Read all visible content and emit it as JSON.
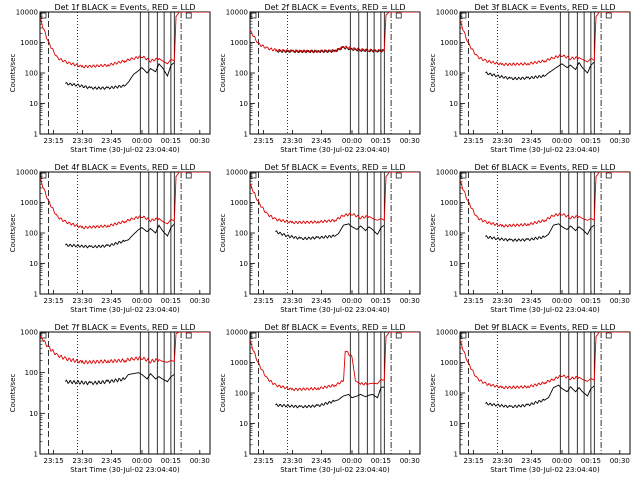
{
  "colors": {
    "events": "#000000",
    "lld": "#dd0000",
    "background": "#ffffff",
    "axis": "#000000"
  },
  "chart_data": [
    {
      "type": "line",
      "title": "Det 1f BLACK = Events, RED = LLD",
      "xlabel": "Start Time (30-Jul-02 23:04:40)",
      "ylabel": "Counts/sec",
      "ylog": true,
      "ylim": [
        1,
        10000
      ],
      "xlim": [
        0,
        100
      ],
      "x_ticks": [
        "23:15",
        "23:30",
        "23:45",
        "00:00",
        "00:15",
        "00:30"
      ],
      "y_ticks": [
        "1",
        "10",
        "100",
        "1000",
        "10000"
      ],
      "series": [
        {
          "name": "Events",
          "color": "#000000",
          "x": [
            15,
            22,
            30,
            40,
            50,
            52,
            55,
            58,
            60,
            63,
            65,
            68,
            70,
            72,
            75,
            77,
            79
          ],
          "y": [
            45,
            40,
            32,
            32,
            38,
            50,
            90,
            120,
            150,
            100,
            140,
            110,
            200,
            150,
            80,
            180,
            220
          ]
        },
        {
          "name": "LLD",
          "color": "#dd0000",
          "x": [
            0,
            5,
            10,
            15,
            25,
            40,
            50,
            55,
            60,
            65,
            70,
            72,
            75,
            77,
            79,
            80,
            82,
            85,
            90,
            95,
            100
          ],
          "y": [
            6000,
            1000,
            320,
            230,
            160,
            180,
            250,
            300,
            350,
            250,
            300,
            250,
            200,
            280,
            250,
            7000,
            10000,
            10000,
            10000,
            10000,
            10000
          ]
        }
      ]
    },
    {
      "type": "line",
      "title": "Det 2f BLACK = Events, RED = LLD",
      "xlabel": "Start Time (30-Jul-02 23:04:40)",
      "ylabel": "Counts/sec",
      "ylog": true,
      "ylim": [
        1,
        10000
      ],
      "xlim": [
        0,
        100
      ],
      "x_ticks": [
        "23:15",
        "23:30",
        "23:45",
        "00:00",
        "00:15",
        "00:30"
      ],
      "y_ticks": [
        "1",
        "10",
        "100",
        "1000",
        "10000"
      ],
      "series": [
        {
          "name": "Events",
          "color": "#000000",
          "x": [
            15,
            25,
            40,
            50,
            55,
            60,
            65,
            70,
            75,
            79
          ],
          "y": [
            520,
            510,
            510,
            520,
            680,
            600,
            560,
            540,
            530,
            530
          ]
        },
        {
          "name": "LLD",
          "color": "#dd0000",
          "x": [
            0,
            5,
            10,
            15,
            25,
            40,
            50,
            55,
            60,
            65,
            70,
            75,
            79,
            80,
            82,
            90,
            100
          ],
          "y": [
            2500,
            900,
            650,
            560,
            520,
            520,
            540,
            720,
            640,
            580,
            560,
            540,
            540,
            8000,
            10000,
            10000,
            10000
          ]
        }
      ]
    },
    {
      "type": "line",
      "title": "Det 3f BLACK = Events, RED = LLD",
      "xlabel": "Start Time (30-Jul-02 23:04:40)",
      "ylabel": "Counts/sec",
      "ylog": true,
      "ylim": [
        1,
        10000
      ],
      "xlim": [
        0,
        100
      ],
      "x_ticks": [
        "23:15",
        "23:30",
        "23:45",
        "00:00",
        "00:15",
        "00:30"
      ],
      "y_ticks": [
        "1",
        "10",
        "100",
        "1000",
        "10000"
      ],
      "series": [
        {
          "name": "Events",
          "color": "#000000",
          "x": [
            15,
            22,
            30,
            40,
            50,
            52,
            55,
            58,
            60,
            63,
            65,
            68,
            70,
            72,
            75,
            77,
            79
          ],
          "y": [
            100,
            80,
            65,
            68,
            80,
            100,
            130,
            170,
            200,
            150,
            180,
            130,
            220,
            150,
            100,
            180,
            230
          ]
        },
        {
          "name": "LLD",
          "color": "#dd0000",
          "x": [
            0,
            5,
            10,
            15,
            25,
            40,
            50,
            55,
            60,
            65,
            70,
            72,
            75,
            77,
            79,
            80,
            82,
            90,
            100
          ],
          "y": [
            5000,
            900,
            350,
            250,
            190,
            200,
            250,
            320,
            380,
            300,
            320,
            280,
            230,
            300,
            260,
            7000,
            10000,
            10000,
            10000
          ]
        }
      ]
    },
    {
      "type": "line",
      "title": "Det 4f BLACK = Events, RED = LLD",
      "xlabel": "Start Time (30-Jul-02 23:04:40)",
      "ylabel": "Counts/sec",
      "ylog": true,
      "ylim": [
        1,
        10000
      ],
      "xlim": [
        0,
        100
      ],
      "x_ticks": [
        "23:15",
        "23:30",
        "23:45",
        "00:00",
        "00:15",
        "00:30"
      ],
      "y_ticks": [
        "1",
        "10",
        "100",
        "1000",
        "10000"
      ],
      "series": [
        {
          "name": "Events",
          "color": "#000000",
          "x": [
            15,
            22,
            30,
            40,
            50,
            52,
            55,
            58,
            60,
            63,
            65,
            68,
            70,
            72,
            75,
            77,
            79
          ],
          "y": [
            40,
            38,
            35,
            38,
            55,
            60,
            90,
            130,
            150,
            110,
            140,
            100,
            180,
            120,
            80,
            150,
            200
          ]
        },
        {
          "name": "LLD",
          "color": "#dd0000",
          "x": [
            0,
            5,
            10,
            15,
            25,
            40,
            50,
            55,
            60,
            65,
            70,
            72,
            75,
            77,
            79,
            80,
            82,
            90,
            100
          ],
          "y": [
            6000,
            1100,
            350,
            230,
            150,
            170,
            240,
            300,
            350,
            260,
            300,
            240,
            200,
            280,
            250,
            7000,
            10000,
            10000,
            10000
          ]
        }
      ]
    },
    {
      "type": "line",
      "title": "Det 5f BLACK = Events, RED = LLD",
      "xlabel": "Start Time (30-Jul-02 23:04:40)",
      "ylabel": "Counts/sec",
      "ylog": true,
      "ylim": [
        1,
        10000
      ],
      "xlim": [
        0,
        100
      ],
      "x_ticks": [
        "23:15",
        "23:30",
        "23:45",
        "00:00",
        "00:15",
        "00:30"
      ],
      "y_ticks": [
        "1",
        "10",
        "100",
        "1000",
        "10000"
      ],
      "series": [
        {
          "name": "Events",
          "color": "#000000",
          "x": [
            15,
            22,
            30,
            40,
            50,
            52,
            55,
            58,
            60,
            63,
            65,
            68,
            70,
            72,
            75,
            77,
            79
          ],
          "y": [
            110,
            80,
            65,
            70,
            80,
            95,
            180,
            200,
            160,
            130,
            170,
            120,
            160,
            130,
            90,
            150,
            180
          ]
        },
        {
          "name": "LLD",
          "color": "#dd0000",
          "x": [
            0,
            5,
            10,
            15,
            25,
            40,
            50,
            55,
            60,
            65,
            70,
            72,
            75,
            77,
            79,
            80,
            82,
            90,
            100
          ],
          "y": [
            4000,
            1000,
            420,
            280,
            220,
            230,
            260,
            380,
            420,
            320,
            350,
            300,
            260,
            300,
            260,
            7000,
            10000,
            10000,
            10000
          ]
        }
      ]
    },
    {
      "type": "line",
      "title": "Det 6f BLACK = Events, RED = LLD",
      "xlabel": "Start Time (30-Jul-02 23:04:40)",
      "ylabel": "Counts/sec",
      "ylog": true,
      "ylim": [
        1,
        10000
      ],
      "xlim": [
        0,
        100
      ],
      "x_ticks": [
        "23:15",
        "23:30",
        "23:45",
        "00:00",
        "00:15",
        "00:30"
      ],
      "y_ticks": [
        "1",
        "10",
        "100",
        "1000",
        "10000"
      ],
      "series": [
        {
          "name": "Events",
          "color": "#000000",
          "x": [
            15,
            22,
            30,
            40,
            50,
            52,
            55,
            58,
            60,
            63,
            65,
            68,
            70,
            72,
            75,
            77,
            79
          ],
          "y": [
            75,
            65,
            58,
            60,
            75,
            90,
            180,
            200,
            160,
            130,
            170,
            120,
            160,
            130,
            90,
            150,
            180
          ]
        },
        {
          "name": "LLD",
          "color": "#dd0000",
          "x": [
            0,
            5,
            10,
            15,
            25,
            40,
            50,
            55,
            60,
            65,
            70,
            72,
            75,
            77,
            79,
            80,
            82,
            90,
            100
          ],
          "y": [
            5000,
            1000,
            320,
            230,
            170,
            190,
            260,
            380,
            420,
            320,
            350,
            300,
            260,
            300,
            260,
            7000,
            10000,
            10000,
            10000
          ]
        }
      ]
    },
    {
      "type": "line",
      "title": "Det 7f BLACK = Events, RED = LLD",
      "xlabel": "Start Time (30-Jul-02 23:04:40)",
      "ylabel": "Counts/sec",
      "ylog": true,
      "ylim": [
        1,
        1000
      ],
      "xlim": [
        0,
        100
      ],
      "x_ticks": [
        "23:15",
        "23:30",
        "23:45",
        "00:00",
        "00:15",
        "00:30"
      ],
      "y_ticks": [
        "1",
        "10",
        "100",
        "1000"
      ],
      "series": [
        {
          "name": "Events",
          "color": "#000000",
          "x": [
            15,
            22,
            30,
            40,
            50,
            52,
            55,
            58,
            60,
            63,
            65,
            68,
            70,
            72,
            75,
            77,
            79
          ],
          "y": [
            60,
            58,
            55,
            60,
            70,
            90,
            95,
            100,
            90,
            70,
            95,
            70,
            80,
            70,
            60,
            80,
            90
          ]
        },
        {
          "name": "LLD",
          "color": "#dd0000",
          "x": [
            0,
            5,
            10,
            15,
            25,
            40,
            50,
            55,
            60,
            65,
            70,
            72,
            75,
            77,
            79,
            80,
            82,
            90,
            100
          ],
          "y": [
            800,
            420,
            270,
            220,
            180,
            190,
            200,
            220,
            230,
            190,
            210,
            190,
            180,
            200,
            190,
            900,
            1000,
            1000,
            1000
          ]
        }
      ]
    },
    {
      "type": "line",
      "title": "Det 8f BLACK = Events, RED = LLD",
      "xlabel": "Start Time (30-Jul-02 23:04:40)",
      "ylabel": "Counts/sec",
      "ylog": true,
      "ylim": [
        1,
        10000
      ],
      "xlim": [
        0,
        100
      ],
      "x_ticks": [
        "23:15",
        "23:30",
        "23:45",
        "00:00",
        "00:15",
        "00:30"
      ],
      "y_ticks": [
        "1",
        "10",
        "100",
        "1000",
        "10000"
      ],
      "series": [
        {
          "name": "Events",
          "color": "#000000",
          "x": [
            15,
            22,
            30,
            40,
            50,
            52,
            55,
            58,
            60,
            63,
            65,
            68,
            70,
            72,
            75,
            77,
            79
          ],
          "y": [
            40,
            38,
            35,
            38,
            55,
            60,
            80,
            90,
            70,
            80,
            90,
            75,
            85,
            90,
            70,
            150,
            160
          ]
        },
        {
          "name": "LLD",
          "color": "#dd0000",
          "x": [
            0,
            5,
            10,
            15,
            25,
            40,
            50,
            55,
            56,
            60,
            62,
            65,
            70,
            72,
            75,
            77,
            79,
            80,
            82,
            90,
            100
          ],
          "y": [
            5000,
            900,
            300,
            180,
            130,
            140,
            180,
            250,
            2500,
            1500,
            250,
            200,
            200,
            210,
            200,
            280,
            260,
            7000,
            10000,
            10000,
            10000
          ]
        }
      ]
    },
    {
      "type": "line",
      "title": "Det 9f BLACK = Events, RED = LLD",
      "xlabel": "Start Time (30-Jul-02 23:04:40)",
      "ylabel": "Counts/sec",
      "ylog": true,
      "ylim": [
        1,
        10000
      ],
      "xlim": [
        0,
        100
      ],
      "x_ticks": [
        "23:15",
        "23:30",
        "23:45",
        "00:00",
        "00:15",
        "00:30"
      ],
      "y_ticks": [
        "1",
        "10",
        "100",
        "1000",
        "10000"
      ],
      "series": [
        {
          "name": "Events",
          "color": "#000000",
          "x": [
            15,
            22,
            30,
            40,
            50,
            52,
            55,
            58,
            60,
            63,
            65,
            68,
            70,
            72,
            75,
            77,
            79
          ],
          "y": [
            45,
            40,
            35,
            40,
            60,
            70,
            150,
            180,
            140,
            110,
            160,
            110,
            150,
            110,
            80,
            140,
            170
          ]
        },
        {
          "name": "LLD",
          "color": "#dd0000",
          "x": [
            0,
            5,
            10,
            15,
            25,
            40,
            50,
            55,
            60,
            65,
            70,
            72,
            75,
            77,
            79,
            80,
            82,
            90,
            100
          ],
          "y": [
            5000,
            900,
            300,
            200,
            150,
            160,
            220,
            280,
            380,
            300,
            330,
            280,
            240,
            300,
            260,
            7000,
            10000,
            10000,
            10000
          ]
        }
      ]
    }
  ],
  "markers": {
    "dashed_x": [
      5
    ],
    "dotted_x": [
      22
    ],
    "solid_x": [
      59,
      64,
      69,
      73,
      77,
      79
    ],
    "dashdot_x": [
      83
    ]
  }
}
